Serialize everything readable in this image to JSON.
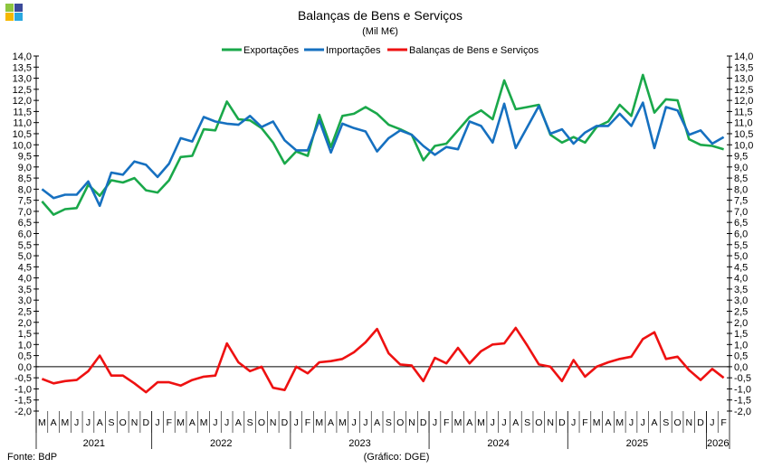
{
  "colors": {
    "exports": "#1aa84a",
    "imports": "#1670c0",
    "balance": "#ee1111"
  },
  "footer": {
    "source": "Fonte: BdP",
    "credit": "(Gráfico: DGE)"
  },
  "chart_data": {
    "type": "line",
    "title": "Balanças de Bens e Serviços",
    "subtitle": "(Mil M€)",
    "ylim": [
      -2.0,
      14.0
    ],
    "ystep": 0.5,
    "legend_position": "top",
    "months": [
      "M",
      "A",
      "M",
      "J",
      "J",
      "A",
      "S",
      "O",
      "N",
      "D",
      "J",
      "F",
      "M",
      "A",
      "M",
      "J",
      "J",
      "A",
      "S",
      "O",
      "N",
      "D",
      "J",
      "F",
      "M",
      "A",
      "M",
      "J",
      "J",
      "A",
      "S",
      "O",
      "N",
      "D",
      "J",
      "F",
      "M",
      "A",
      "M",
      "J",
      "J",
      "A",
      "S",
      "O",
      "N",
      "D",
      "J",
      "F",
      "M",
      "A",
      "M",
      "J",
      "J",
      "A",
      "S",
      "O",
      "N",
      "D",
      "J",
      "F"
    ],
    "years": [
      {
        "label": "2021",
        "months": 10
      },
      {
        "label": "2022",
        "months": 12
      },
      {
        "label": "2023",
        "months": 12
      },
      {
        "label": "2024",
        "months": 12
      },
      {
        "label": "2025",
        "months": 12
      },
      {
        "label": "2026",
        "months": 2
      }
    ],
    "series": [
      {
        "name": "Exportações",
        "color": "#1aa84a",
        "values": [
          7.45,
          6.85,
          7.1,
          7.15,
          8.2,
          7.7,
          8.4,
          8.3,
          8.5,
          7.95,
          7.85,
          8.4,
          9.45,
          9.5,
          10.7,
          10.65,
          11.95,
          11.15,
          11.1,
          10.75,
          10.1,
          9.15,
          9.7,
          9.5,
          11.35,
          9.9,
          11.3,
          11.4,
          11.7,
          11.4,
          10.9,
          10.7,
          10.45,
          9.3,
          9.95,
          10.05,
          10.65,
          11.25,
          11.55,
          11.15,
          12.9,
          11.6,
          11.7,
          11.8,
          10.45,
          10.1,
          10.35,
          10.1,
          10.8,
          11.05,
          11.8,
          11.3,
          13.15,
          11.45,
          12.05,
          12.0,
          10.25,
          10.0,
          9.95,
          9.8
        ]
      },
      {
        "name": "Importações",
        "color": "#1670c0",
        "values": [
          8.0,
          7.6,
          7.75,
          7.75,
          8.35,
          7.25,
          8.75,
          8.65,
          9.25,
          9.1,
          8.55,
          9.15,
          10.3,
          10.15,
          11.25,
          11.05,
          10.95,
          10.9,
          11.3,
          10.8,
          11.05,
          10.2,
          9.75,
          9.75,
          11.1,
          9.65,
          10.95,
          10.75,
          10.6,
          9.7,
          10.3,
          10.65,
          10.45,
          9.95,
          9.55,
          9.9,
          9.8,
          11.05,
          10.85,
          10.1,
          11.85,
          9.85,
          10.8,
          11.75,
          10.5,
          10.7,
          10.05,
          10.55,
          10.85,
          10.85,
          11.4,
          10.85,
          11.9,
          9.85,
          11.7,
          11.55,
          10.45,
          10.65,
          10.05,
          10.35
        ]
      },
      {
        "name": "Balanças de Bens e Serviços",
        "color": "#ee1111",
        "values": [
          -0.55,
          -0.75,
          -0.65,
          -0.6,
          -0.2,
          0.5,
          -0.4,
          -0.4,
          -0.75,
          -1.15,
          -0.7,
          -0.7,
          -0.85,
          -0.6,
          -0.45,
          -0.4,
          1.05,
          0.2,
          -0.2,
          0.0,
          -0.95,
          -1.05,
          0.0,
          -0.3,
          0.2,
          0.25,
          0.35,
          0.65,
          1.1,
          1.7,
          0.6,
          0.1,
          0.05,
          -0.65,
          0.4,
          0.15,
          0.85,
          0.15,
          0.7,
          1.0,
          1.05,
          1.75,
          0.95,
          0.1,
          0.0,
          -0.65,
          0.3,
          -0.45,
          0.0,
          0.2,
          0.35,
          0.45,
          1.25,
          1.55,
          0.35,
          0.45,
          -0.15,
          -0.6,
          -0.1,
          -0.5
        ]
      }
    ]
  }
}
